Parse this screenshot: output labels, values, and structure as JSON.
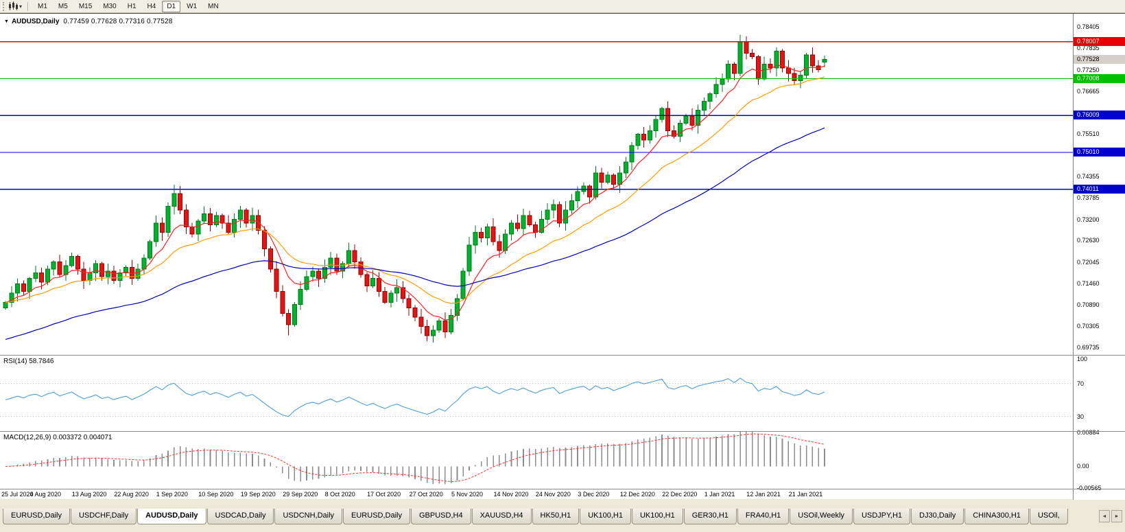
{
  "toolbar": {
    "timeframes": [
      "M1",
      "M5",
      "M15",
      "M30",
      "H1",
      "H4",
      "D1",
      "W1",
      "MN"
    ],
    "active_timeframe": "D1"
  },
  "chart": {
    "title_symbol": "AUDUSD,Daily",
    "title_ohlc": "0.77459 0.77628 0.77316 0.77528",
    "price_axis_ticks": [
      "0.78405",
      "0.77835",
      "0.77250",
      "0.76665",
      "0.75510",
      "0.74355",
      "0.73785",
      "0.73200",
      "0.72630",
      "0.72045",
      "0.71460",
      "0.70890",
      "0.70305",
      "0.69735"
    ],
    "current_price_badge": {
      "label": "0.77528",
      "bg": "#d4d0c8",
      "fg": "#000000"
    },
    "date_labels": [
      {
        "label": "25 Jul 2020",
        "bar": 0
      },
      {
        "label": "4 Aug 2020",
        "bar": 7
      },
      {
        "label": "13 Aug 2020",
        "bar": 14
      },
      {
        "label": "22 Aug 2020",
        "bar": 21
      },
      {
        "label": "1 Sep 2020",
        "bar": 28
      },
      {
        "label": "10 Sep 2020",
        "bar": 35
      },
      {
        "label": "19 Sep 2020",
        "bar": 42
      },
      {
        "label": "29 Sep 2020",
        "bar": 49
      },
      {
        "label": "8 Oct 2020",
        "bar": 56
      },
      {
        "label": "17 Oct 2020",
        "bar": 63
      },
      {
        "label": "27 Oct 2020",
        "bar": 70
      },
      {
        "label": "5 Nov 2020",
        "bar": 77
      },
      {
        "label": "14 Nov 2020",
        "bar": 84
      },
      {
        "label": "24 Nov 2020",
        "bar": 91
      },
      {
        "label": "3 Dec 2020",
        "bar": 98
      },
      {
        "label": "12 Dec 2020",
        "bar": 105
      },
      {
        "label": "22 Dec 2020",
        "bar": 112
      },
      {
        "label": "1 Jan 2021",
        "bar": 119
      },
      {
        "label": "12 Jan 2021",
        "bar": 126
      },
      {
        "label": "21 Jan 2021",
        "bar": 133
      }
    ]
  },
  "chart_data": {
    "type": "candlestick",
    "symbol": "AUDUSD",
    "timeframe": "Daily",
    "x_range": [
      "25 Jul 2020",
      "21 Jan 2021"
    ],
    "y_visible_range": [
      0.6953,
      0.78765
    ],
    "ohlc_current": {
      "open": 0.77459,
      "high": 0.77628,
      "low": 0.77316,
      "close": 0.77528
    },
    "closes": [
      0.7095,
      0.712,
      0.7145,
      0.7125,
      0.716,
      0.7175,
      0.715,
      0.7185,
      0.7205,
      0.717,
      0.7195,
      0.722,
      0.7185,
      0.7155,
      0.7175,
      0.72,
      0.7165,
      0.718,
      0.7155,
      0.7175,
      0.719,
      0.716,
      0.7185,
      0.7215,
      0.726,
      0.731,
      0.7285,
      0.7355,
      0.739,
      0.7345,
      0.73,
      0.728,
      0.7315,
      0.7335,
      0.7305,
      0.733,
      0.731,
      0.7285,
      0.732,
      0.7345,
      0.731,
      0.733,
      0.729,
      0.724,
      0.7185,
      0.7125,
      0.7065,
      0.7035,
      0.709,
      0.713,
      0.7165,
      0.718,
      0.716,
      0.719,
      0.7215,
      0.718,
      0.72,
      0.7235,
      0.7205,
      0.717,
      0.714,
      0.716,
      0.7125,
      0.7095,
      0.712,
      0.7135,
      0.7105,
      0.708,
      0.7055,
      0.703,
      0.7005,
      0.702,
      0.7045,
      0.7015,
      0.706,
      0.7105,
      0.718,
      0.725,
      0.7285,
      0.727,
      0.73,
      0.726,
      0.7235,
      0.728,
      0.731,
      0.7295,
      0.733,
      0.7305,
      0.7285,
      0.732,
      0.7345,
      0.736,
      0.731,
      0.7345,
      0.737,
      0.7395,
      0.741,
      0.738,
      0.7445,
      0.742,
      0.744,
      0.7415,
      0.7445,
      0.7475,
      0.752,
      0.755,
      0.7535,
      0.756,
      0.759,
      0.762,
      0.756,
      0.7545,
      0.758,
      0.76,
      0.7575,
      0.7615,
      0.764,
      0.766,
      0.7685,
      0.77,
      0.774,
      0.7715,
      0.78,
      0.777,
      0.776,
      0.77,
      0.774,
      0.773,
      0.7775,
      0.773,
      0.7715,
      0.7695,
      0.771,
      0.7765,
      0.7735,
      0.7725,
      0.77528
    ],
    "first_open": 0.708,
    "wick_overrides": {
      "28": {
        "high": 0.7414
      },
      "47": {
        "low": 0.7006
      },
      "70": {
        "low": 0.699
      },
      "122": {
        "high": 0.782
      }
    },
    "horizontal_levels": [
      {
        "price": 0.78007,
        "label": "0.78007",
        "color": "#e80000",
        "badge_fg": "#ffffff"
      },
      {
        "price": 0.77008,
        "label": "0.77008",
        "color": "#00c000",
        "badge_fg": "#ffffff"
      },
      {
        "price": 0.76009,
        "label": "0.76009",
        "color": "#0000cd",
        "badge_fg": "#ffffff"
      },
      {
        "price": 0.7501,
        "label": "0.75010",
        "color": "#0000cd",
        "badge_fg": "#ffffff"
      },
      {
        "price": 0.74011,
        "label": "0.74011",
        "color": "#0000cd",
        "badge_fg": "#ffffff"
      }
    ],
    "moving_averages": [
      {
        "name": "fast",
        "period": 8,
        "color": "#ff2020"
      },
      {
        "name": "medium",
        "period": 20,
        "color": "#ff9c00"
      },
      {
        "name": "slow",
        "period": 55,
        "color": "#0000bb",
        "seed": 0.6995
      }
    ],
    "candle_colors": {
      "up": "#00b22c",
      "up_edge": "#007a1c",
      "down": "#e41414",
      "down_edge": "#960000"
    },
    "indicators": {
      "rsi": {
        "label": "RSI(14) 58.7846",
        "period": 14,
        "value": 58.7846,
        "levels": [
          70,
          30
        ],
        "axis_labels": [
          "100",
          "70",
          "30"
        ],
        "axis_values": [
          100,
          70,
          30
        ],
        "color": "#4a9fd8",
        "level_color": "#b8b8b8"
      },
      "macd": {
        "label": "MACD(12,26,9) 0.003372 0.004071",
        "fast": 12,
        "slow": 26,
        "signal": 9,
        "value": 0.003372,
        "signal_value": 0.004071,
        "axis_labels": [
          "0.00884",
          "0.00",
          "-0.00565"
        ],
        "axis_values": [
          0.00884,
          0,
          -0.00565
        ],
        "histogram_color": "#8c8c8c",
        "signal_color": "#ff2a2a"
      }
    }
  },
  "tabs": {
    "active_index": 2,
    "items": [
      "EURUSD,Daily",
      "USDCHF,Daily",
      "AUDUSD,Daily",
      "USDCAD,Daily",
      "USDCNH,Daily",
      "EURUSD,Daily",
      "GBPUSD,H4",
      "XAUUSD,H4",
      "HK50,H1",
      "UK100,H1",
      "UK100,H1",
      "GER30,H1",
      "FRA40,H1",
      "USOil,Weekly",
      "USDJPY,H1",
      "DJ30,Daily",
      "CHINA300,H1",
      "USOil,"
    ],
    "scroll_left": "◄",
    "scroll_right": "►"
  }
}
